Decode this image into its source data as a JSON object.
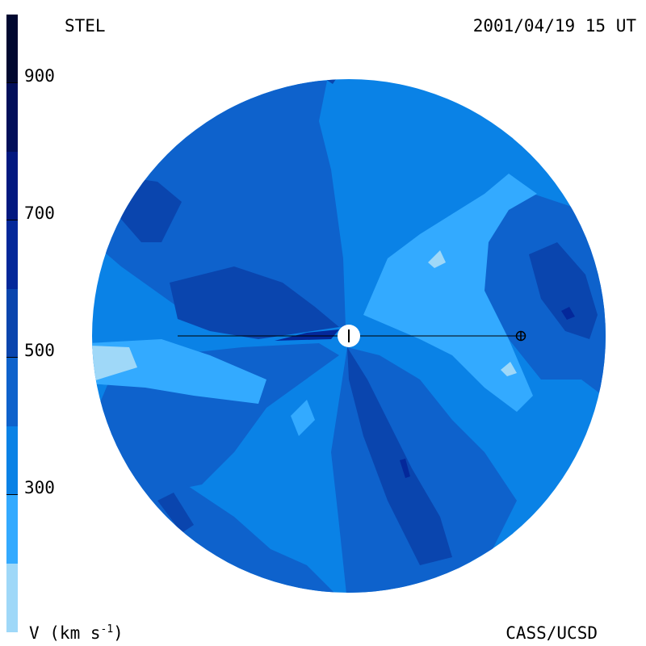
{
  "header": {
    "source": "STEL",
    "datetime": "2001/04/19 15 UT"
  },
  "footer": {
    "credit": "CASS/UCSD",
    "units_prefix": "V (km s",
    "units_exp": "-1",
    "units_suffix": ")"
  },
  "colorbar": {
    "quantity": "V",
    "ticks": [
      "900",
      "700",
      "500",
      "300"
    ],
    "levels": [
      {
        "min": 100,
        "max": 200,
        "color": "#9fd8f8"
      },
      {
        "min": 200,
        "max": 300,
        "color": "#33aaff"
      },
      {
        "min": 300,
        "max": 400,
        "color": "#0a82e6"
      },
      {
        "min": 400,
        "max": 500,
        "color": "#0e62cc"
      },
      {
        "min": 500,
        "max": 600,
        "color": "#0a45ae"
      },
      {
        "min": 600,
        "max": 700,
        "color": "#04289a"
      },
      {
        "min": 700,
        "max": 800,
        "color": "#021880"
      },
      {
        "min": 800,
        "max": 900,
        "color": "#020f5a"
      },
      {
        "min": 900,
        "max": 1000,
        "color": "#010830"
      }
    ]
  },
  "map": {
    "background_level": "#0a82e6",
    "sun_symbol": "sun",
    "earth_symbol": "earth"
  }
}
